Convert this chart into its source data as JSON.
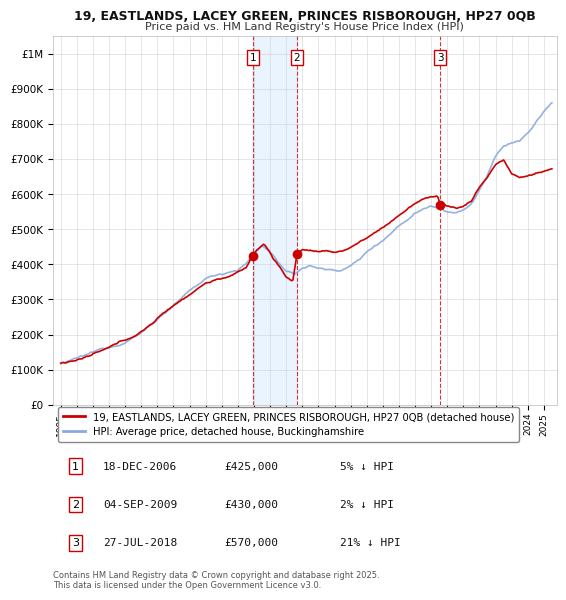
{
  "title_line1": "19, EASTLANDS, LACEY GREEN, PRINCES RISBOROUGH, HP27 0QB",
  "title_line2": "Price paid vs. HM Land Registry's House Price Index (HPI)",
  "ylabel_ticks": [
    "£0",
    "£100K",
    "£200K",
    "£300K",
    "£400K",
    "£500K",
    "£600K",
    "£700K",
    "£800K",
    "£900K",
    "£1M"
  ],
  "ylim": [
    0,
    1050000
  ],
  "xlim_start": 1994.5,
  "xlim_end": 2025.8,
  "transactions": [
    {
      "num": 1,
      "date": "18-DEC-2006",
      "price": 425000,
      "pct": "5%",
      "dir": "↓",
      "year": 2006.96
    },
    {
      "num": 2,
      "date": "04-SEP-2009",
      "price": 430000,
      "pct": "2%",
      "dir": "↓",
      "year": 2009.67
    },
    {
      "num": 3,
      "date": "27-JUL-2018",
      "price": 570000,
      "pct": "21%",
      "dir": "↓",
      "year": 2018.57
    }
  ],
  "legend_label_red": "19, EASTLANDS, LACEY GREEN, PRINCES RISBOROUGH, HP27 0QB (detached house)",
  "legend_label_blue": "HPI: Average price, detached house, Buckinghamshire",
  "footer": "Contains HM Land Registry data © Crown copyright and database right 2025.\nThis data is licensed under the Open Government Licence v3.0.",
  "bg_color": "#ffffff",
  "grid_color": "#cccccc",
  "red_color": "#cc0000",
  "blue_color": "#88aadd",
  "shade_color": "#ddeeff",
  "table_rows": [
    {
      "num": "1",
      "date": "18-DEC-2006",
      "price": "£425,000",
      "info": "5% ↓ HPI"
    },
    {
      "num": "2",
      "date": "04-SEP-2009",
      "price": "£430,000",
      "info": "2% ↓ HPI"
    },
    {
      "num": "3",
      "date": "27-JUL-2018",
      "price": "£570,000",
      "info": "21% ↓ HPI"
    }
  ]
}
